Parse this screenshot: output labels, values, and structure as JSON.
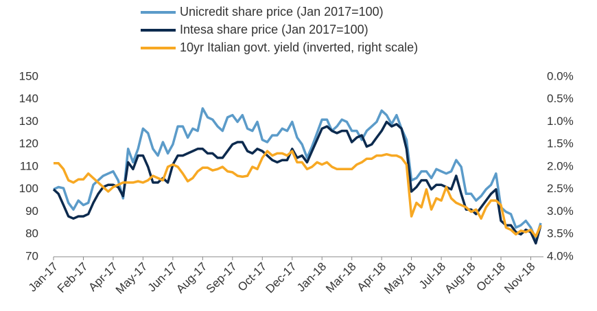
{
  "chart_data": {
    "type": "line",
    "categories": [
      "Jan-17",
      null,
      null,
      null,
      null,
      null,
      "Feb-17",
      null,
      null,
      null,
      null,
      null,
      "Apr-17",
      null,
      null,
      null,
      null,
      null,
      "May-17",
      null,
      null,
      null,
      null,
      null,
      "Jun-17",
      null,
      null,
      null,
      null,
      null,
      "Aug-17",
      null,
      null,
      null,
      null,
      null,
      "Sep-17",
      null,
      null,
      null,
      null,
      null,
      "Oct-17",
      null,
      null,
      null,
      null,
      null,
      "Dec-17",
      null,
      null,
      null,
      null,
      null,
      "Jan-18",
      null,
      null,
      null,
      null,
      null,
      "Mar-18",
      null,
      null,
      null,
      null,
      null,
      "Apr-18",
      null,
      null,
      null,
      null,
      null,
      "May-18",
      null,
      null,
      null,
      null,
      null,
      "Jul-18",
      null,
      null,
      null,
      null,
      null,
      "Aug-18",
      null,
      null,
      null,
      null,
      null,
      "Oct-18",
      null,
      null,
      null,
      null,
      null,
      "Nov-18",
      null,
      null
    ],
    "series": [
      {
        "name": "Unicredit share price (Jan 2017=100)",
        "color": "#5b9bc9",
        "values": [
          100,
          101,
          100.5,
          94,
          91,
          95,
          93,
          94,
          102,
          104,
          106,
          107,
          108,
          104,
          96,
          118,
          112,
          118,
          127,
          125,
          118,
          115,
          121,
          116,
          120,
          128,
          128,
          123,
          127,
          126,
          136,
          132,
          131,
          128,
          126,
          132,
          133,
          130,
          133,
          127,
          126,
          130,
          122,
          121,
          124,
          124,
          127,
          126,
          130,
          123,
          120,
          114,
          119,
          125,
          131,
          131,
          126,
          128,
          131,
          130,
          126,
          126,
          122,
          126,
          128,
          130,
          135,
          133,
          129,
          133,
          127,
          122,
          104,
          105,
          108,
          108,
          105,
          109,
          108,
          107,
          108,
          113,
          110,
          98,
          98,
          95,
          97,
          100,
          102,
          107,
          92,
          90,
          89,
          83,
          84,
          86,
          83,
          78,
          85
        ]
      },
      {
        "name": "Intesa share price (Jan 2017=100)",
        "color": "#0c2a4e",
        "values": [
          100,
          98,
          93,
          88,
          87,
          88,
          88,
          89,
          94,
          98,
          101,
          102,
          102,
          101,
          97,
          112,
          109,
          115,
          115,
          110,
          103,
          103,
          105,
          103,
          111,
          115,
          115,
          116,
          117,
          118,
          118,
          116,
          116,
          114,
          114,
          117,
          120,
          121,
          121,
          117,
          116,
          118,
          117,
          115,
          113,
          112,
          113,
          113,
          118,
          114,
          115,
          112,
          117,
          122,
          127,
          128,
          126,
          125,
          126,
          126,
          121,
          123,
          124,
          119,
          120,
          123,
          126,
          130,
          128,
          129,
          127,
          118,
          99,
          101,
          104,
          104,
          100,
          102,
          102,
          101,
          100,
          106,
          98,
          91,
          91,
          89,
          92,
          95,
          98,
          100,
          86,
          84,
          84,
          81,
          80,
          82,
          81,
          76,
          84
        ]
      },
      {
        "name": "10yr Italian govt. yield (inverted, right scale)",
        "color": "#f7a823",
        "axis": "y2",
        "values": [
          1.92,
          1.92,
          2.05,
          2.3,
          2.35,
          2.28,
          2.28,
          2.15,
          2.25,
          2.35,
          2.45,
          2.55,
          2.45,
          2.4,
          2.35,
          2.35,
          2.35,
          2.32,
          2.35,
          2.3,
          2.2,
          2.25,
          2.3,
          2.0,
          1.95,
          2.0,
          2.15,
          2.32,
          2.25,
          2.1,
          2.02,
          2.02,
          2.08,
          2.05,
          2.0,
          2.1,
          2.12,
          2.2,
          2.22,
          2.2,
          2.0,
          2.05,
          1.8,
          1.65,
          1.75,
          1.7,
          1.7,
          1.75,
          1.65,
          1.9,
          1.9,
          2.05,
          2.0,
          1.9,
          1.95,
          1.9,
          2.0,
          2.05,
          2.05,
          2.05,
          2.05,
          1.95,
          1.9,
          1.82,
          1.82,
          1.75,
          1.75,
          1.72,
          1.75,
          1.75,
          1.8,
          1.95,
          3.1,
          2.8,
          2.9,
          2.5,
          2.95,
          2.7,
          2.75,
          2.45,
          2.7,
          2.8,
          2.85,
          2.9,
          3.0,
          2.95,
          3.15,
          2.9,
          2.75,
          2.75,
          2.85,
          3.35,
          3.4,
          3.5,
          3.42,
          3.45,
          3.4,
          3.55,
          3.3
        ]
      }
    ],
    "ylim": [
      70,
      150
    ],
    "yticks": [
      70,
      80,
      90,
      100,
      110,
      120,
      130,
      140,
      150
    ],
    "y2lim": [
      4.0,
      0.0
    ],
    "y2ticks": [
      {
        "value": 0,
        "label": "0.0%"
      },
      {
        "value": 0.5,
        "label": "0.5%"
      },
      {
        "value": 1,
        "label": "1.0%"
      },
      {
        "value": 1.5,
        "label": "1.5%"
      },
      {
        "value": 2,
        "label": "2.0%"
      },
      {
        "value": 2.5,
        "label": "2.5%"
      },
      {
        "value": 3,
        "label": "3.0%"
      },
      {
        "value": 3.5,
        "label": "3.5%"
      },
      {
        "value": 4,
        "label": "4.0%"
      }
    ],
    "grid": false
  }
}
